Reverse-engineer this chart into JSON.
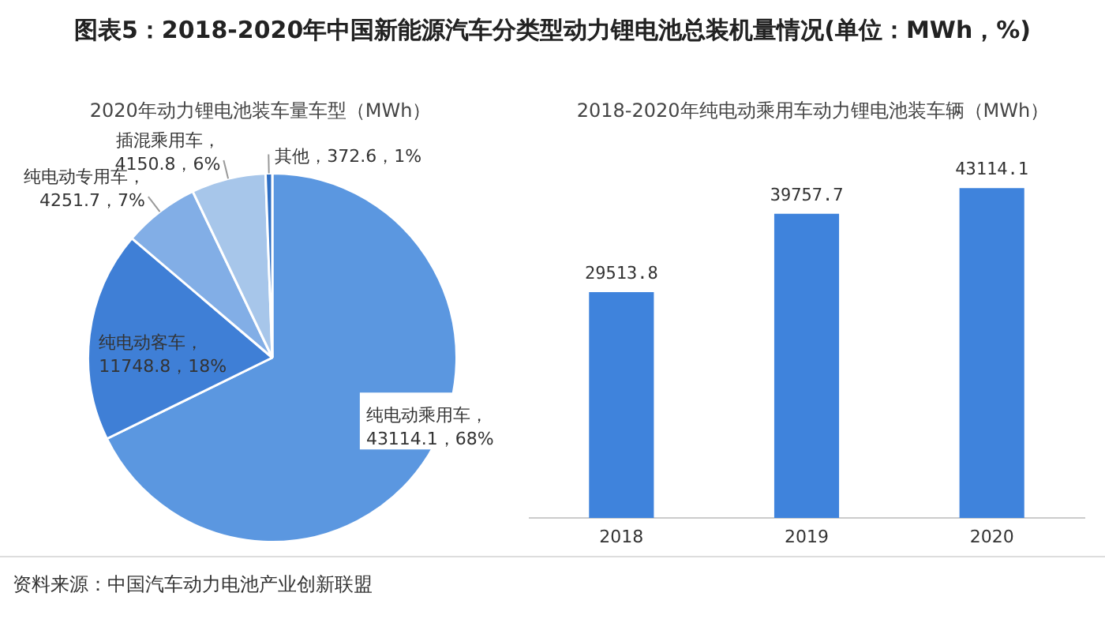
{
  "chart_data": [
    {
      "type": "pie",
      "title": "图表5：2018-2020年中国新能源汽车分类型动力锂电池总装机量情况(单位：MWh，%)",
      "subtitle": "2020年动力锂电池装车量车型（MWh）",
      "categories": [
        "纯电动乘用车",
        "纯电动客车",
        "纯电动专用车",
        "插混乘用车",
        "其他"
      ],
      "values": [
        43114.1,
        11748.8,
        4251.7,
        4150.8,
        372.6
      ],
      "colors": [
        "#5b97e0",
        "#3f7fd6",
        "#82aee6",
        "#a7c6ea",
        "#2f6fc4"
      ],
      "value_labels": [
        "，43114.1，68%",
        "，11748.8，18%",
        "，4251.7，7%",
        "，4150.8，6%",
        "，372.6，1%"
      ],
      "annotations": [
        "资料来源：中国汽车动力电池产业创新联盟"
      ]
    },
    {
      "type": "bar",
      "title": "2018-2020年纯电动乘用车动力锂电池装车辆（MWh）",
      "categories": [
        "2018",
        "2019",
        "2020"
      ],
      "values": [
        29513.8,
        39757.7,
        43114.1
      ],
      "color": "#3f83dc",
      "data_labels": true
    }
  ]
}
